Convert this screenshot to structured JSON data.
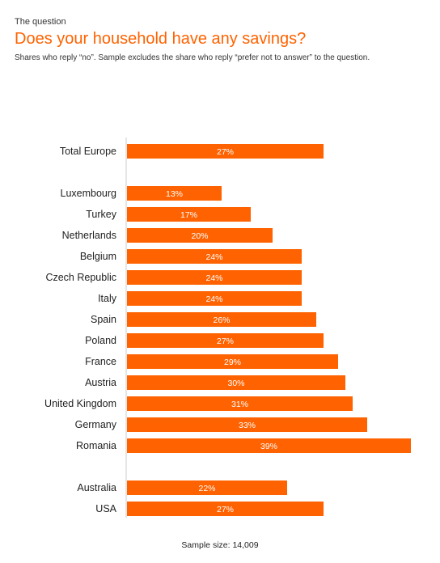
{
  "header": {
    "kicker": "The question",
    "title": "Does your household have any savings?",
    "subtitle": "Shares who reply “no”. Sample excludes the share who reply “prefer not to answer” to the question."
  },
  "footer": {
    "sample_size": "Sample size: 14,009"
  },
  "colors": {
    "bar": "#ff6200",
    "bar_label": "#ffffff",
    "axis": "#cccccc",
    "title": "#ff6200"
  },
  "chart_data": {
    "type": "bar",
    "orientation": "horizontal",
    "value_unit": "%",
    "groups": [
      {
        "categories": [
          "Total Europe"
        ],
        "values": [
          27
        ]
      },
      {
        "categories": [
          "Luxembourg",
          "Turkey",
          "Netherlands",
          "Belgium",
          "Czech Republic",
          "Italy",
          "Spain",
          "Poland",
          "France",
          "Austria",
          "United Kingdom",
          "Germany",
          "Romania"
        ],
        "values": [
          13,
          17,
          20,
          24,
          24,
          24,
          26,
          27,
          29,
          30,
          31,
          33,
          39
        ]
      },
      {
        "categories": [
          "Australia",
          "USA"
        ],
        "values": [
          22,
          27
        ]
      }
    ],
    "data_labels": true,
    "grid": false
  }
}
